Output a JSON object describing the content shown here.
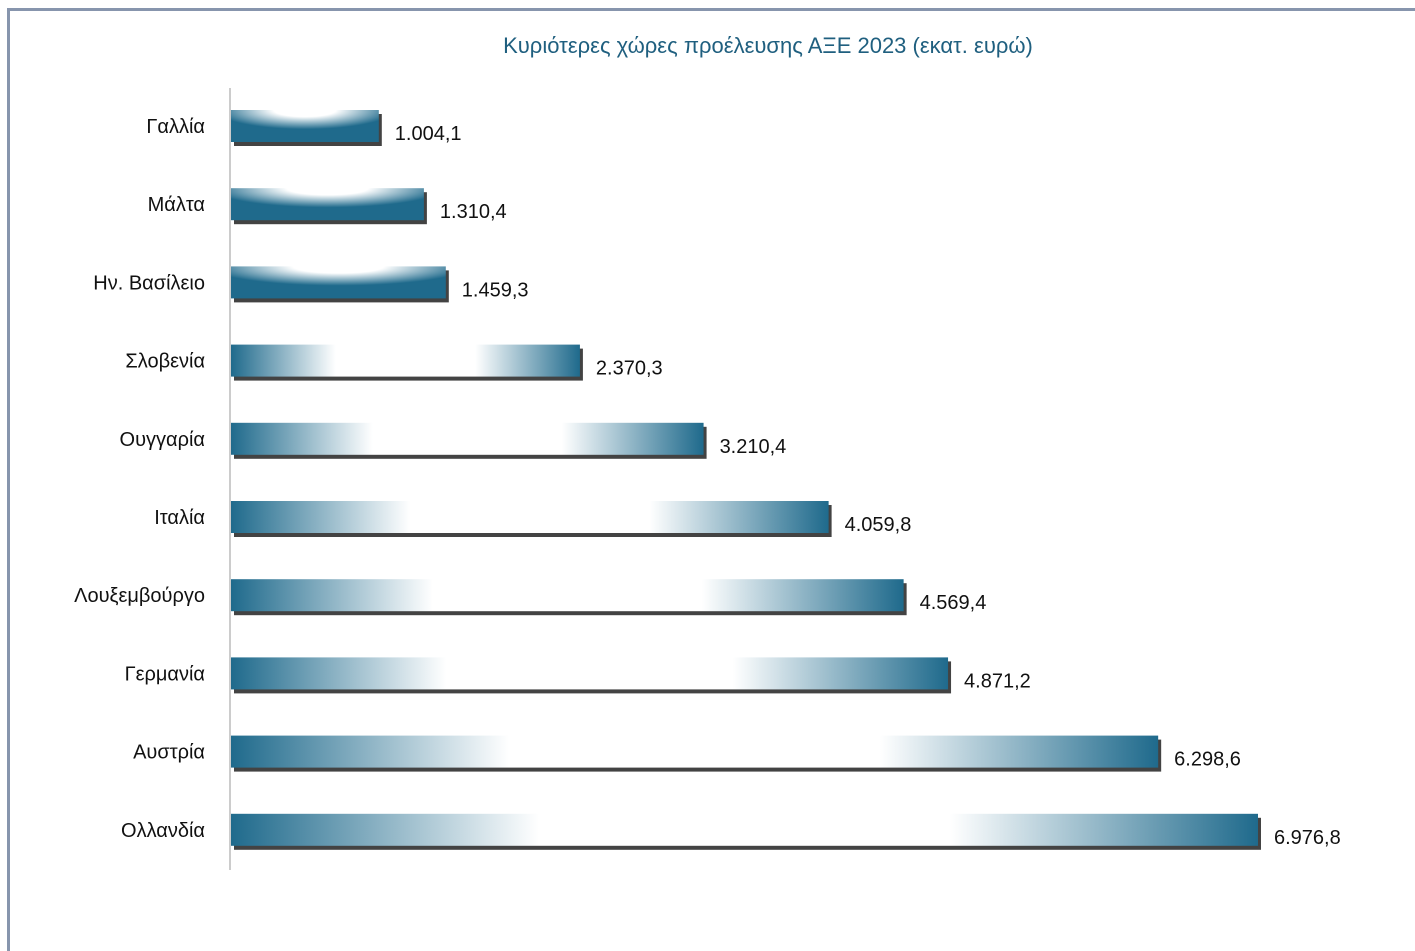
{
  "chart_data": {
    "type": "bar",
    "orientation": "horizontal",
    "title": "Κυριότερες χώρες προέλευσης ΑΞΕ 2023 (εκατ. ευρώ)",
    "categories": [
      "Γαλλία",
      "Μάλτα",
      "Ην. Βασίλειο",
      "Σλοβενία",
      "Ουγγαρία",
      "Ιταλία",
      "Λουξεμβούργο",
      "Γερμανία",
      "Αυστρία",
      "Ολλανδία"
    ],
    "values": [
      1004.1,
      1310.4,
      1459.3,
      2370.3,
      3210.4,
      4059.8,
      4569.4,
      4871.2,
      6298.6,
      6976.8
    ],
    "value_labels": [
      "1.004,1",
      "1.310,4",
      "1.459,3",
      "2.370,3",
      "3.210,4",
      "4.059,8",
      "4.569,4",
      "4.871,2",
      "6.298,6",
      "6.976,8"
    ],
    "xlim": [
      0,
      6976.8
    ],
    "xlabel": "",
    "ylabel": "",
    "grid": false,
    "legend": "none",
    "bar_color": "#1f6a8c",
    "title_color": "#1f5f7f"
  }
}
